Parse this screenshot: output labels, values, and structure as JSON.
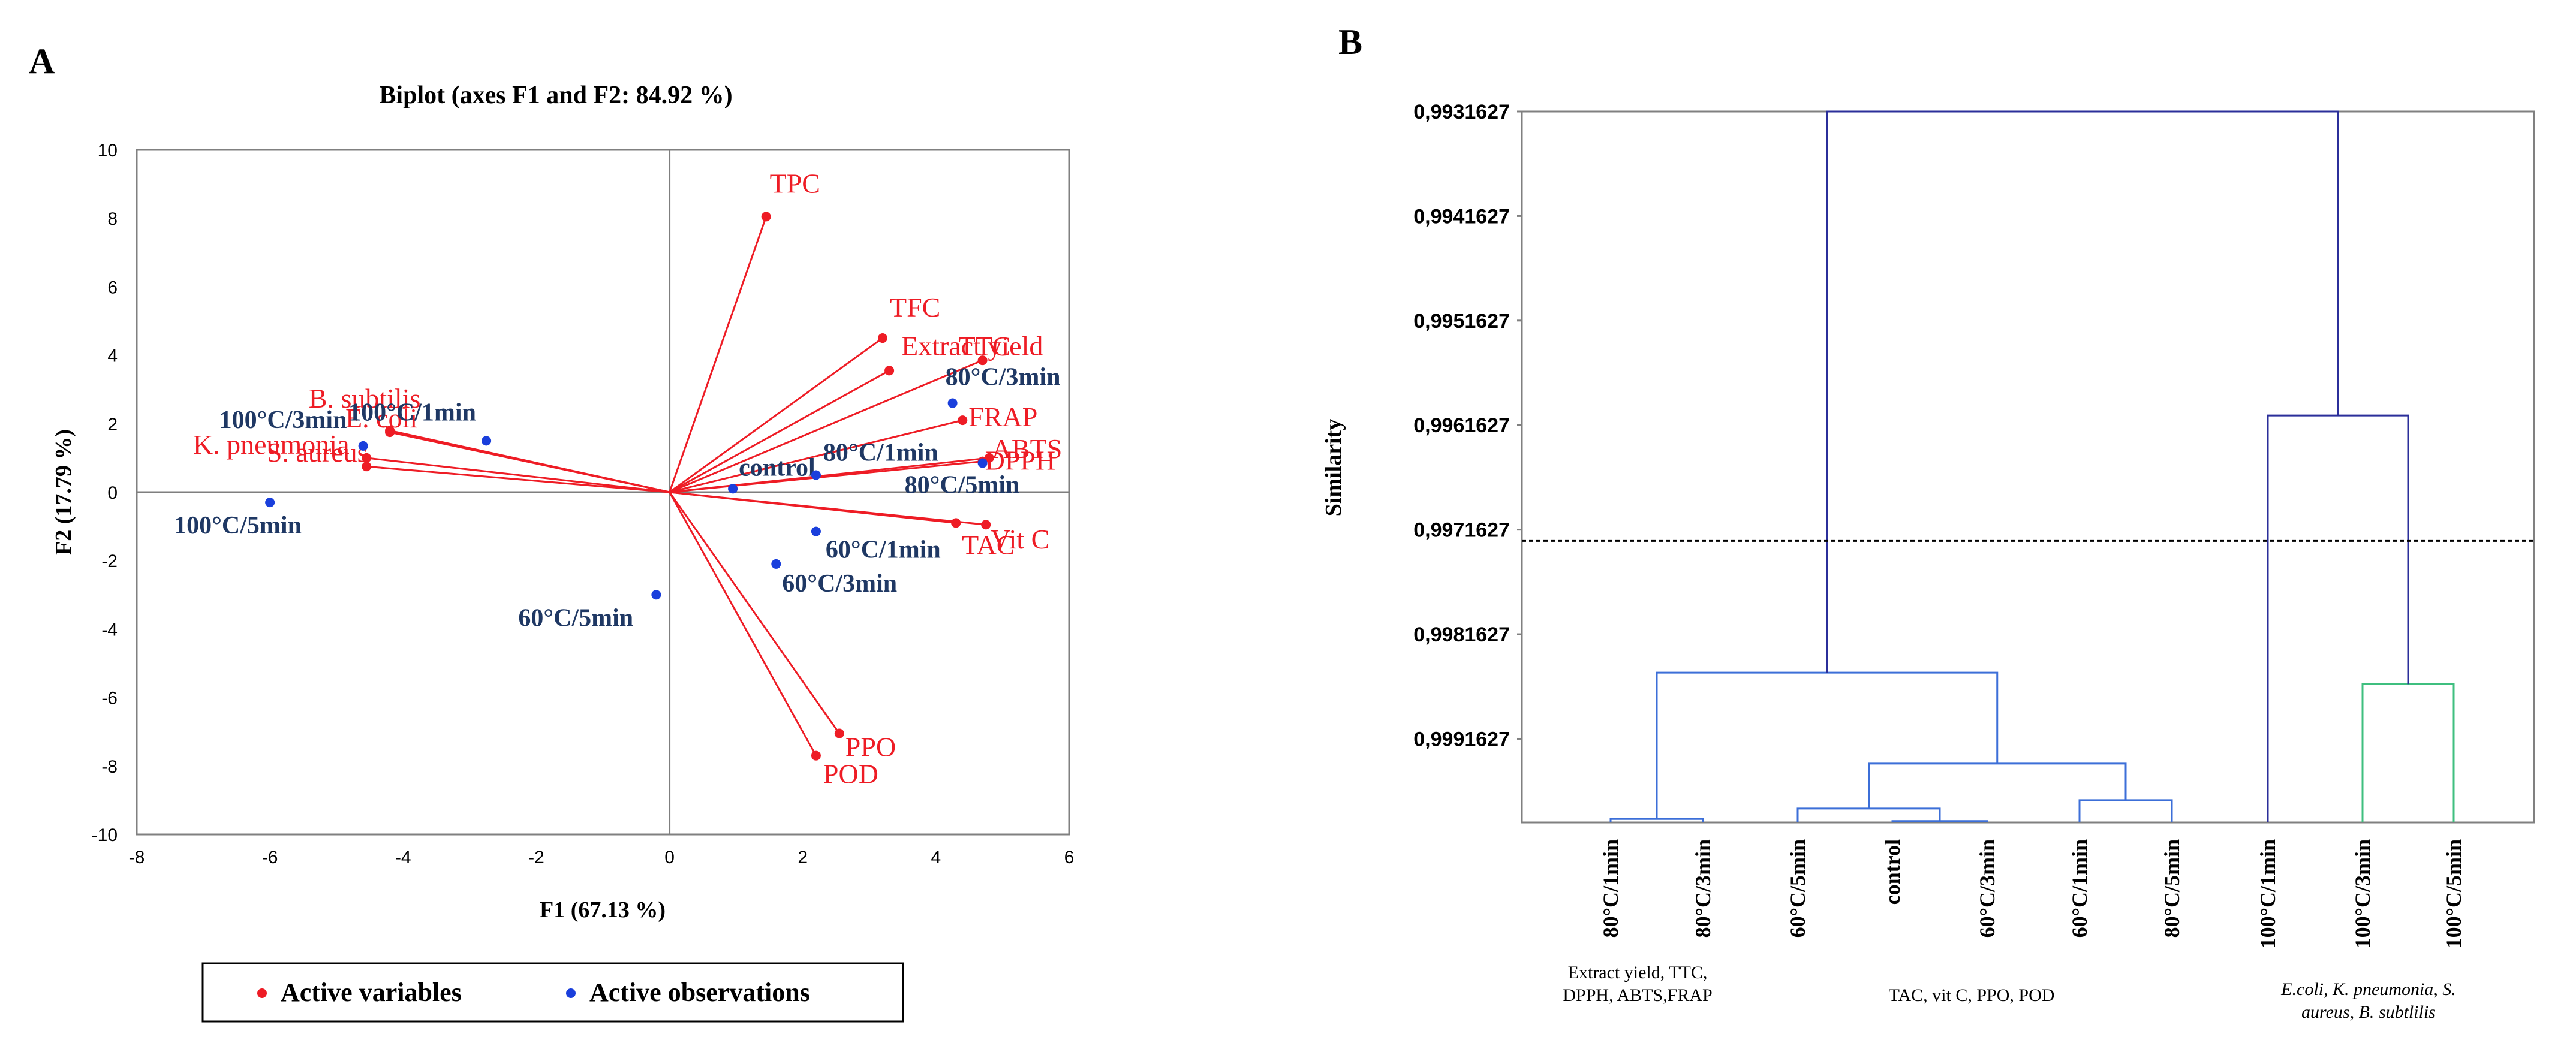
{
  "panels": {
    "a_label": "A",
    "b_label": "B"
  },
  "colors": {
    "variable": "#ee1c25",
    "observation": "#1f3864",
    "observation_dot": "#1a3fdc",
    "dendro_main": "#2b2f9a",
    "dendro_light": "#3c6fd8",
    "dendro_green": "#3fbf7f",
    "axis": "#7f7f7f",
    "frame": "#808080"
  },
  "chart_data": [
    {
      "type": "scatter",
      "title": "Biplot (axes F1 and F2: 84.92 %)",
      "xlabel": "F1 (67.13 %)",
      "ylabel": "F2 (17.79 %)",
      "xlim": [
        -8,
        6
      ],
      "ylim": [
        -10,
        10
      ],
      "xticks": [
        "-8",
        "-6",
        "-4",
        "-2",
        "0",
        "2",
        "4",
        "6"
      ],
      "yticks": [
        "-10",
        "-8",
        "-6",
        "-4",
        "-2",
        "0",
        "2",
        "4",
        "6",
        "8",
        "10"
      ],
      "legend": {
        "variables": "Active variables",
        "observations": "Active observations",
        "placement": "bottom"
      },
      "variables": [
        {
          "name": "TPC",
          "x": 1.45,
          "y": 8.05
        },
        {
          "name": "TFC",
          "x": 3.2,
          "y": 4.5
        },
        {
          "name": "Extract yield",
          "x": 3.3,
          "y": 3.55
        },
        {
          "name": "TTC",
          "x": 4.7,
          "y": 3.85
        },
        {
          "name": "FRAP",
          "x": 4.4,
          "y": 2.1
        },
        {
          "name": "ABTS",
          "x": 4.8,
          "y": 1.0
        },
        {
          "name": "DPPH",
          "x": 4.7,
          "y": 0.9
        },
        {
          "name": "TAC",
          "x": 4.3,
          "y": -0.9
        },
        {
          "name": "Vit C",
          "x": 4.75,
          "y": -0.95
        },
        {
          "name": "PPO",
          "x": 2.55,
          "y": -7.05
        },
        {
          "name": "POD",
          "x": 2.2,
          "y": -7.7
        },
        {
          "name": "B. subtilis",
          "x": -4.2,
          "y": 1.8
        },
        {
          "name": "E. coli",
          "x": -4.2,
          "y": 1.75
        },
        {
          "name": "K. pneumonia",
          "x": -4.55,
          "y": 1.0
        },
        {
          "name": "S. aureus",
          "x": -4.55,
          "y": 0.75
        }
      ],
      "observations": [
        {
          "name": "100°C/1min",
          "x": -2.75,
          "y": 1.5
        },
        {
          "name": "100°C/3min",
          "x": -4.6,
          "y": 1.35
        },
        {
          "name": "100°C/5min",
          "x": -6.0,
          "y": -0.3
        },
        {
          "name": "60°C/5min",
          "x": -0.2,
          "y": -3.0
        },
        {
          "name": "control",
          "x": 0.95,
          "y": 0.1
        },
        {
          "name": "80°C/1min",
          "x": 2.2,
          "y": 0.5
        },
        {
          "name": "80°C/3min",
          "x": 4.25,
          "y": 2.6
        },
        {
          "name": "80°C/5min",
          "x": 4.7,
          "y": 0.85
        },
        {
          "name": "60°C/1min",
          "x": 2.2,
          "y": -1.15
        },
        {
          "name": "60°C/3min",
          "x": 1.6,
          "y": -2.1
        }
      ]
    },
    {
      "type": "dendrogram",
      "ylabel": "Similarity",
      "yticks": [
        "0,9931627",
        "0,9941627",
        "0,9951627",
        "0,9961627",
        "0,9971627",
        "0,9981627",
        "0,9991627"
      ],
      "ylim": [
        0.9931627,
        0.9999627
      ],
      "truncation_line": 0.99727,
      "leaves": [
        "80°C/1min",
        "80°C/3min",
        "60°C/5min",
        "control",
        "60°C/3min",
        "60°C/1min",
        "80°C/5min",
        "100°C/1min",
        "100°C/3min",
        "100°C/5min"
      ],
      "merges": [
        {
          "left": "80°C/1min",
          "right": "80°C/3min",
          "similarity": 0.99993
        },
        {
          "left": "control",
          "right": "60°C/3min",
          "similarity": 0.99995
        },
        {
          "left": "60°C/5min",
          "right": "control+60°C/3min",
          "similarity": 0.99983
        },
        {
          "left": "60°C/1min",
          "right": "80°C/5min",
          "similarity": 0.99975
        },
        {
          "left": "60°C/5min cluster",
          "right": "60°C/1min+80°C/5min",
          "similarity": 0.9994
        },
        {
          "left": "80°C/1min+80°C/3min",
          "right": "60°C/x cluster",
          "similarity": 0.99853
        },
        {
          "left": "100°C/3min",
          "right": "100°C/5min",
          "similarity": 0.99864
        },
        {
          "left": "100°C/1min",
          "right": "100°C/3min+100°C/5min",
          "similarity": 0.99607
        },
        {
          "left": "low-temp cluster",
          "right": "100°C cluster",
          "similarity": 0.9931627
        }
      ],
      "group_annotations": [
        "Extract yield,  TTC,\nDPPH, ABTS,FRAP",
        "TAC, vit C, PPO, POD",
        "E.coli, K. pneumonia,  S.\naureus, B. subtlilis"
      ]
    }
  ]
}
